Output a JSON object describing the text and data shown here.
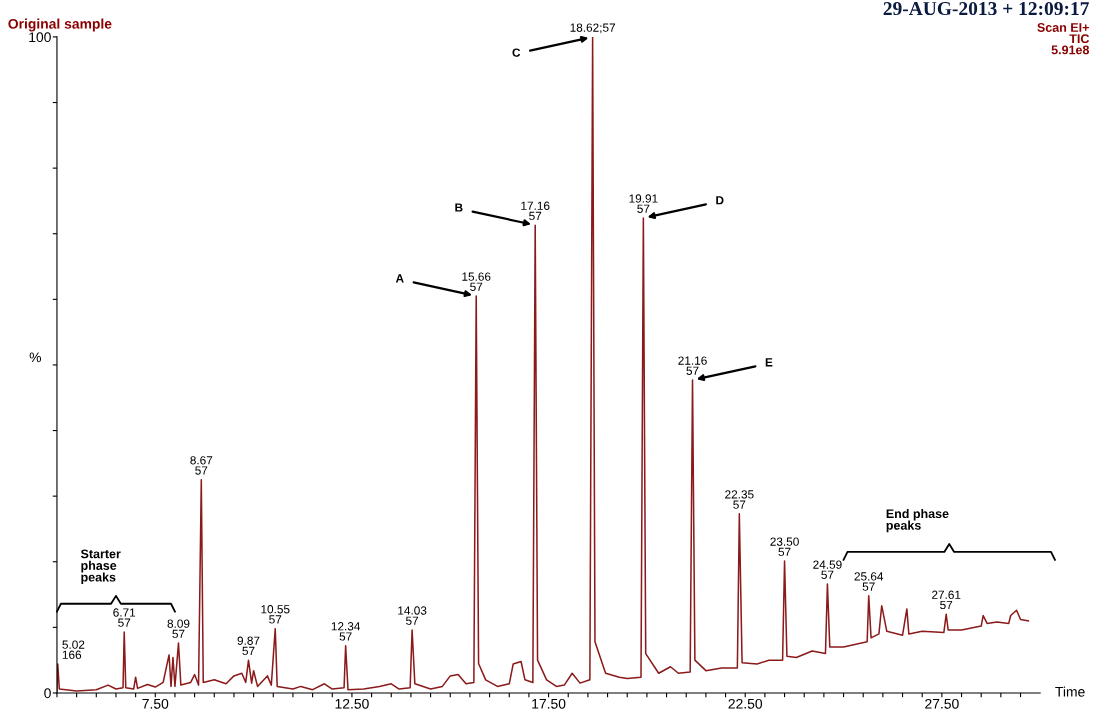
{
  "chart_data": {
    "type": "line",
    "title": "Original sample",
    "xlabel": "Time",
    "ylabel": "%",
    "x": [
      5.0,
      5.02,
      5.06,
      5.5,
      6.0,
      6.3,
      6.5,
      6.68,
      6.71,
      6.75,
      6.95,
      7.0,
      7.05,
      7.3,
      7.5,
      7.7,
      7.85,
      7.9,
      7.95,
      8.0,
      8.09,
      8.15,
      8.4,
      8.5,
      8.6,
      8.67,
      8.72,
      9.0,
      9.3,
      9.5,
      9.7,
      9.8,
      9.87,
      9.95,
      10.0,
      10.1,
      10.35,
      10.45,
      10.55,
      10.6,
      11.0,
      11.2,
      11.5,
      11.8,
      12.0,
      12.3,
      12.34,
      12.4,
      12.8,
      13.2,
      13.5,
      13.7,
      13.98,
      14.03,
      14.1,
      14.5,
      14.8,
      15.0,
      15.2,
      15.4,
      15.6,
      15.66,
      15.72,
      15.9,
      16.2,
      16.5,
      16.6,
      16.8,
      16.9,
      17.1,
      17.16,
      17.22,
      17.45,
      17.7,
      17.9,
      18.1,
      18.3,
      18.55,
      18.62,
      18.68,
      18.95,
      19.3,
      19.5,
      19.85,
      19.91,
      19.97,
      20.3,
      20.6,
      20.8,
      21.1,
      21.16,
      21.22,
      21.5,
      21.9,
      22.3,
      22.35,
      22.42,
      22.8,
      23.1,
      23.45,
      23.5,
      23.56,
      23.8,
      24.2,
      24.54,
      24.59,
      24.65,
      25.0,
      25.6,
      25.64,
      25.7,
      25.9,
      25.97,
      26.1,
      26.5,
      26.61,
      26.66,
      27.0,
      27.55,
      27.61,
      27.66,
      28.0,
      28.5,
      28.55,
      28.65,
      28.9,
      29.2,
      29.25,
      29.4,
      29.5,
      29.7
    ],
    "series": [
      {
        "color": "#8b1a1a",
        "values": [
          0.3,
          4.4,
          0.6,
          0.3,
          0.5,
          1.2,
          0.6,
          0.8,
          9.3,
          0.8,
          0.6,
          2.4,
          0.7,
          1.3,
          0.9,
          1.6,
          5.8,
          1.0,
          5.4,
          1.0,
          7.6,
          1.2,
          1.6,
          2.8,
          1.2,
          32.5,
          1.6,
          2.0,
          1.4,
          2.6,
          3.0,
          1.6,
          5.0,
          1.5,
          3.4,
          1.0,
          2.6,
          1.2,
          9.8,
          1.0,
          0.6,
          1.0,
          0.5,
          1.4,
          0.6,
          0.8,
          7.2,
          0.5,
          0.6,
          1.0,
          1.4,
          0.6,
          0.8,
          9.6,
          1.4,
          0.6,
          1.0,
          2.6,
          2.8,
          1.4,
          1.6,
          60.5,
          4.5,
          2.0,
          1.0,
          1.4,
          4.4,
          4.8,
          2.0,
          1.6,
          71.3,
          5.0,
          2.0,
          1.0,
          1.2,
          3.0,
          1.5,
          2.0,
          100,
          7.8,
          3.0,
          2.4,
          2.2,
          2.4,
          72.4,
          6.0,
          3.0,
          4.0,
          3.0,
          3.2,
          47.7,
          5.0,
          3.4,
          3.8,
          3.8,
          27.3,
          4.6,
          4.4,
          5.0,
          5.0,
          20.1,
          5.6,
          5.4,
          6.4,
          6.0,
          16.6,
          7.0,
          7.0,
          7.8,
          14.8,
          8.4,
          9.0,
          13.3,
          9.4,
          8.8,
          12.8,
          9.0,
          9.4,
          9.2,
          12.0,
          9.6,
          9.6,
          10.2,
          11.8,
          10.6,
          10.8,
          10.6,
          11.8,
          12.6,
          11.2,
          11.0
        ]
      }
    ],
    "xlim": [
      5.0,
      30.0
    ],
    "ylim": [
      0,
      100
    ],
    "xticks": [
      {
        "value": 5.0,
        "label": null
      },
      {
        "value": 5.5,
        "label": null
      },
      {
        "value": 6.0,
        "label": null
      },
      {
        "value": 6.5,
        "label": null
      },
      {
        "value": 7.0,
        "label": null
      },
      {
        "value": 7.5,
        "label": "7.50"
      },
      {
        "value": 8.0,
        "label": null
      },
      {
        "value": 8.5,
        "label": null
      },
      {
        "value": 9.0,
        "label": null
      },
      {
        "value": 9.5,
        "label": null
      },
      {
        "value": 10.0,
        "label": null
      },
      {
        "value": 10.5,
        "label": null
      },
      {
        "value": 11.0,
        "label": null
      },
      {
        "value": 11.5,
        "label": null
      },
      {
        "value": 12.0,
        "label": null
      },
      {
        "value": 12.5,
        "label": "12.50"
      },
      {
        "value": 13.0,
        "label": null
      },
      {
        "value": 13.5,
        "label": null
      },
      {
        "value": 14.0,
        "label": null
      },
      {
        "value": 14.5,
        "label": null
      },
      {
        "value": 15.0,
        "label": null
      },
      {
        "value": 15.5,
        "label": null
      },
      {
        "value": 16.0,
        "label": null
      },
      {
        "value": 16.5,
        "label": null
      },
      {
        "value": 17.0,
        "label": null
      },
      {
        "value": 17.5,
        "label": "17.50"
      },
      {
        "value": 18.0,
        "label": null
      },
      {
        "value": 18.5,
        "label": null
      },
      {
        "value": 19.0,
        "label": null
      },
      {
        "value": 19.5,
        "label": null
      },
      {
        "value": 20.0,
        "label": null
      },
      {
        "value": 20.5,
        "label": null
      },
      {
        "value": 21.0,
        "label": null
      },
      {
        "value": 21.5,
        "label": null
      },
      {
        "value": 22.0,
        "label": null
      },
      {
        "value": 22.5,
        "label": "22.50"
      },
      {
        "value": 23.0,
        "label": null
      },
      {
        "value": 23.5,
        "label": null
      },
      {
        "value": 24.0,
        "label": null
      },
      {
        "value": 24.5,
        "label": null
      },
      {
        "value": 25.0,
        "label": null
      },
      {
        "value": 25.5,
        "label": null
      },
      {
        "value": 26.0,
        "label": null
      },
      {
        "value": 26.5,
        "label": null
      },
      {
        "value": 27.0,
        "label": null
      },
      {
        "value": 27.5,
        "label": "27.50"
      },
      {
        "value": 28.0,
        "label": null
      },
      {
        "value": 28.5,
        "label": null
      },
      {
        "value": 29.0,
        "label": null
      },
      {
        "value": 29.5,
        "label": null
      }
    ],
    "yticks": [
      0,
      {
        "value": 10,
        "label": null
      },
      {
        "value": 20,
        "label": null
      },
      {
        "value": 30,
        "label": null
      },
      {
        "value": 40,
        "label": null
      },
      {
        "value": 50,
        "label": null
      },
      {
        "value": 60,
        "label": null
      },
      {
        "value": 70,
        "label": null
      },
      {
        "value": 80,
        "label": null
      },
      {
        "value": 90,
        "label": null
      },
      100
    ],
    "grid": false,
    "legend": false,
    "marker": "none",
    "line_style": "solid",
    "annotations": [
      "29-AUG-2013 + 12:09:17",
      "Scan EI+\nTIC\n5.91e8",
      {
        "text": "5.02\n166",
        "x": 5.02,
        "y": 4.4
      },
      {
        "text": "6.71\n57",
        "x": 6.71,
        "y": 9.3
      },
      {
        "text": "8.09\n57",
        "x": 8.09,
        "y": 7.6
      },
      {
        "text": "8.67\n57",
        "x": 8.67,
        "y": 32.5
      },
      {
        "text": "9.87\n57",
        "x": 9.87,
        "y": 5.0
      },
      {
        "text": "10.55\n57",
        "x": 10.55,
        "y": 9.8
      },
      {
        "text": "12.34\n57",
        "x": 12.34,
        "y": 7.2
      },
      {
        "text": "14.03\n57",
        "x": 14.03,
        "y": 9.6
      },
      {
        "text": "15.66\n57",
        "x": 15.66,
        "y": 60.5
      },
      {
        "text": "17.16\n57",
        "x": 17.16,
        "y": 71.3
      },
      {
        "text": "18.62;57",
        "x": 18.62,
        "y": 100
      },
      {
        "text": "19.91\n57",
        "x": 19.91,
        "y": 72.4
      },
      {
        "text": "21.16\n57",
        "x": 21.16,
        "y": 47.7
      },
      {
        "text": "22.35\n57",
        "x": 22.35,
        "y": 27.3
      },
      {
        "text": "23.50\n57",
        "x": 23.5,
        "y": 20.1
      },
      {
        "text": "24.59\n57",
        "x": 24.59,
        "y": 16.6
      },
      {
        "text": "25.64\n57",
        "x": 25.64,
        "y": 14.8
      },
      {
        "text": "27.61\n57",
        "x": 27.61,
        "y": 12.0
      },
      {
        "text": "A",
        "x": 15.66,
        "y": 60.5
      },
      {
        "text": "B",
        "x": 17.16,
        "y": 71.3
      },
      {
        "text": "C",
        "x": 18.62,
        "y": 100
      },
      {
        "text": "D",
        "x": 19.91,
        "y": 72.4
      },
      {
        "text": "E",
        "x": 21.16,
        "y": 47.7
      },
      "Starter\nphase\npeaks",
      "End phase\npeaks"
    ]
  }
}
